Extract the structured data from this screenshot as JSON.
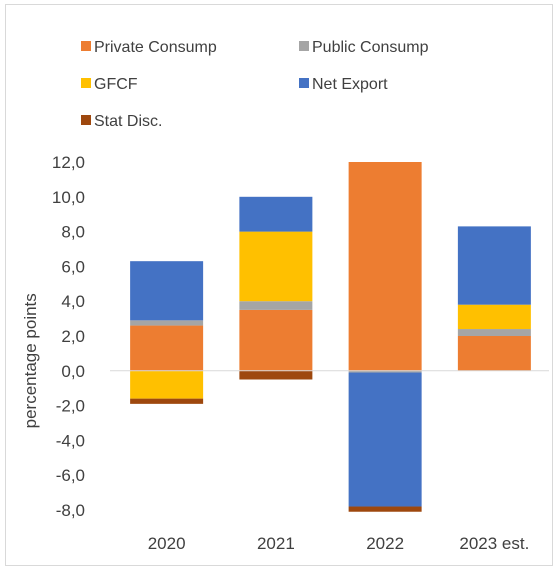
{
  "chart_data": {
    "type": "bar",
    "stacked": true,
    "title": "",
    "xlabel": "",
    "ylabel": "percentage points",
    "ylim": [
      -8.0,
      12.0
    ],
    "ytick_step": 2.0,
    "y_tick_labels": [
      "12,0",
      "10,0",
      "8,0",
      "6,0",
      "4,0",
      "2,0",
      "0,0",
      "-2,0",
      "-4,0",
      "-6,0",
      "-8,0"
    ],
    "categories": [
      "2020",
      "2021",
      "2022",
      "2023 est."
    ],
    "grid": false,
    "legend_position": "top",
    "series": [
      {
        "name": "Private Consump",
        "color": "#ED7D31",
        "values": [
          2.6,
          3.5,
          12.0,
          2.0
        ]
      },
      {
        "name": "Public Consump",
        "color": "#A5A5A5",
        "values": [
          0.3,
          0.5,
          -0.1,
          0.4
        ]
      },
      {
        "name": "GFCF",
        "color": "#FFC000",
        "values": [
          -1.6,
          4.0,
          0.0,
          1.4
        ]
      },
      {
        "name": "Net Export",
        "color": "#4472C4",
        "values": [
          3.4,
          2.0,
          -7.7,
          4.5
        ]
      },
      {
        "name": "Stat Disc.",
        "color": "#9E480E",
        "values": [
          -0.3,
          -0.5,
          -0.3,
          0.0
        ]
      }
    ]
  }
}
